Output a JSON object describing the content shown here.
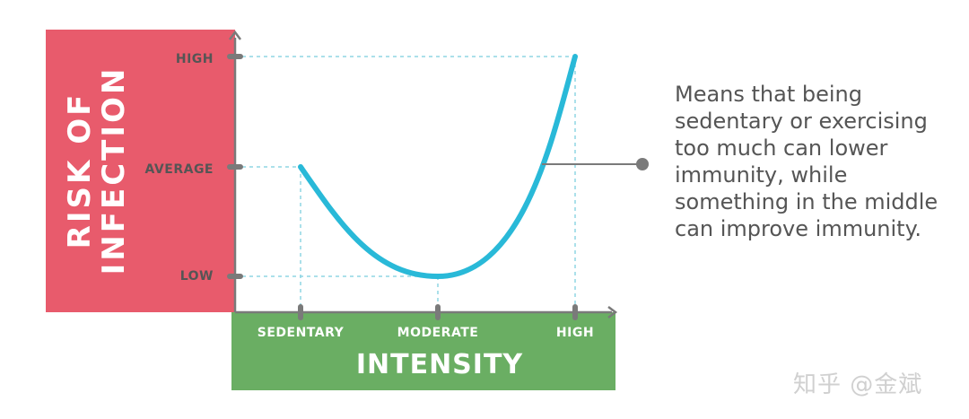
{
  "chart_data": {
    "type": "line",
    "xlabel": "INTENSITY",
    "ylabel_lines": [
      "RISK OF",
      "INFECTION"
    ],
    "x_categories": [
      "SEDENTARY",
      "MODERATE",
      "HIGH"
    ],
    "y_categories": [
      "LOW",
      "AVERAGE",
      "HIGH"
    ],
    "series": [
      {
        "values": [
          {
            "x": "SEDENTARY",
            "y": "AVERAGE"
          },
          {
            "x": "MODERATE",
            "y": "LOW"
          },
          {
            "x": "HIGH",
            "y": "HIGH"
          }
        ]
      }
    ],
    "grid": false,
    "colors": {
      "curve": "#29b9d8",
      "y_axis_panel": "#e85b6c",
      "x_axis_panel": "#6aae63",
      "axis_line": "#7a7a7a",
      "guide_line": "#8fd6e4",
      "annotation_dot": "#7a7a7a"
    }
  },
  "annotation": {
    "text": "Means that being sedentary or exercising too much can lower immunity, while something in the middle can improve immunity."
  },
  "watermark": "知乎 @金斌"
}
